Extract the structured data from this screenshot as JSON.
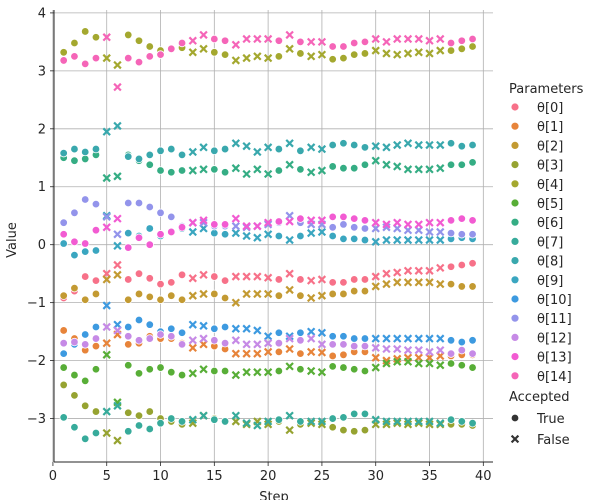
{
  "chart_data": {
    "type": "scatter",
    "title": "",
    "xlabel": "Step",
    "ylabel": "Value",
    "xlim": [
      0.1,
      40.9
    ],
    "ylim": [
      -3.75,
      4.05
    ],
    "xticks": [
      0,
      5,
      10,
      15,
      20,
      25,
      30,
      35,
      40
    ],
    "yticks": [
      -3,
      -2,
      -1,
      0,
      1,
      2,
      3,
      4
    ],
    "grid": true,
    "legend": {
      "placement": "right",
      "hue_title": "Parameters",
      "style_title": "Accepted",
      "styles": [
        {
          "name": "True",
          "marker": "circle"
        },
        {
          "name": "False",
          "marker": "x"
        }
      ]
    },
    "x": [
      1,
      2,
      3,
      4,
      5,
      6,
      7,
      8,
      9,
      10,
      11,
      12,
      13,
      14,
      15,
      16,
      17,
      18,
      19,
      20,
      21,
      22,
      23,
      24,
      25,
      26,
      27,
      28,
      29,
      30,
      31,
      32,
      33,
      34,
      35,
      36,
      37,
      38,
      39
    ],
    "accepted": [
      true,
      true,
      true,
      true,
      false,
      false,
      true,
      true,
      true,
      true,
      true,
      true,
      false,
      false,
      true,
      true,
      false,
      false,
      false,
      false,
      true,
      false,
      true,
      false,
      false,
      true,
      true,
      true,
      true,
      false,
      false,
      false,
      false,
      false,
      false,
      false,
      true,
      true,
      true
    ],
    "series": [
      {
        "name": "θ[0]",
        "color": "#f77189",
        "values": [
          -0.92,
          -0.8,
          -0.55,
          -0.62,
          -0.5,
          -0.35,
          -0.6,
          -0.5,
          -0.58,
          -0.68,
          -0.65,
          -0.52,
          -0.58,
          -0.52,
          -0.55,
          -0.62,
          -0.55,
          -0.55,
          -0.55,
          -0.57,
          -0.6,
          -0.5,
          -0.6,
          -0.62,
          -0.6,
          -0.65,
          -0.65,
          -0.6,
          -0.6,
          -0.55,
          -0.5,
          -0.48,
          -0.45,
          -0.45,
          -0.45,
          -0.4,
          -0.38,
          -0.35,
          -0.32
        ]
      },
      {
        "name": "θ[1]",
        "color": "#e7843a",
        "values": [
          -1.48,
          -1.62,
          -1.82,
          -1.75,
          -1.7,
          -1.55,
          -1.72,
          -1.7,
          -1.58,
          -1.62,
          -1.62,
          -1.7,
          -1.78,
          -1.72,
          -1.75,
          -1.8,
          -1.88,
          -1.88,
          -1.88,
          -1.85,
          -1.85,
          -1.8,
          -1.88,
          -1.85,
          -1.86,
          -1.92,
          -1.9,
          -1.85,
          -1.85,
          -1.95,
          -2.0,
          -1.97,
          -1.95,
          -1.95,
          -1.95,
          -1.92,
          -1.92,
          -1.9,
          -1.9
        ]
      },
      {
        "name": "θ[2]",
        "color": "#c39a32",
        "values": [
          -0.88,
          -0.75,
          -0.95,
          -0.85,
          -0.6,
          -0.52,
          -0.95,
          -0.85,
          -0.9,
          -0.95,
          -0.88,
          -0.95,
          -0.88,
          -0.85,
          -0.85,
          -0.92,
          -1.0,
          -0.85,
          -0.85,
          -0.85,
          -0.88,
          -0.78,
          -0.88,
          -0.92,
          -0.88,
          -0.85,
          -0.85,
          -0.8,
          -0.8,
          -0.72,
          -0.68,
          -0.65,
          -0.65,
          -0.65,
          -0.65,
          -0.68,
          -0.68,
          -0.72,
          -0.72
        ]
      },
      {
        "name": "θ[3]",
        "color": "#96a331",
        "values": [
          -2.42,
          -2.6,
          -2.78,
          -2.88,
          -3.25,
          -3.38,
          -2.9,
          -2.95,
          -2.88,
          -3.0,
          -3.05,
          -3.1,
          -3.08,
          -2.95,
          -3.0,
          -3.05,
          -3.05,
          -3.1,
          -3.05,
          -3.1,
          -3.05,
          -3.2,
          -3.1,
          -3.08,
          -3.1,
          -3.15,
          -3.2,
          -3.22,
          -3.2,
          -3.1,
          -3.1,
          -3.08,
          -3.1,
          -3.08,
          -3.1,
          -3.1,
          -3.1,
          -3.1,
          -3.12
        ]
      },
      {
        "name": "θ[4]",
        "color": "#a4a82f",
        "values": [
          3.32,
          3.48,
          3.68,
          3.58,
          3.22,
          3.1,
          3.62,
          3.52,
          3.42,
          3.35,
          3.38,
          3.4,
          3.32,
          3.38,
          3.32,
          3.28,
          3.18,
          3.22,
          3.25,
          3.22,
          3.25,
          3.38,
          3.3,
          3.25,
          3.28,
          3.2,
          3.22,
          3.28,
          3.3,
          3.35,
          3.3,
          3.28,
          3.3,
          3.32,
          3.3,
          3.35,
          3.35,
          3.38,
          3.42
        ]
      },
      {
        "name": "θ[5]",
        "color": "#58ae37",
        "values": [
          -2.12,
          -2.25,
          -2.35,
          -2.15,
          -1.9,
          -2.72,
          -2.08,
          -2.22,
          -2.15,
          -2.12,
          -2.2,
          -2.25,
          -2.22,
          -2.15,
          -2.18,
          -2.18,
          -2.25,
          -2.2,
          -2.2,
          -2.2,
          -2.18,
          -2.1,
          -2.15,
          -2.18,
          -2.2,
          -2.1,
          -2.12,
          -2.15,
          -2.18,
          -2.12,
          -2.05,
          -2.02,
          -2.02,
          -2.05,
          -2.05,
          -2.08,
          -2.05,
          -2.08,
          -2.12
        ]
      },
      {
        "name": "θ[6]",
        "color": "#35ad84",
        "values": [
          1.5,
          1.45,
          1.48,
          1.55,
          1.15,
          1.18,
          1.55,
          1.45,
          1.38,
          1.28,
          1.25,
          1.28,
          1.28,
          1.3,
          1.3,
          1.25,
          1.32,
          1.22,
          1.3,
          1.22,
          1.28,
          1.38,
          1.3,
          1.25,
          1.28,
          1.35,
          1.32,
          1.32,
          1.38,
          1.45,
          1.38,
          1.35,
          1.3,
          1.3,
          1.3,
          1.32,
          1.38,
          1.38,
          1.42
        ]
      },
      {
        "name": "θ[7]",
        "color": "#37ab9b",
        "values": [
          -2.98,
          -3.15,
          -3.35,
          -3.25,
          -2.88,
          -2.78,
          -3.22,
          -3.12,
          -3.18,
          -3.08,
          -3.0,
          -3.05,
          -3.02,
          -2.95,
          -3.02,
          -3.05,
          -2.95,
          -3.08,
          -3.12,
          -3.05,
          -3.02,
          -2.95,
          -3.05,
          -3.05,
          -3.05,
          -3.0,
          -2.98,
          -2.92,
          -2.92,
          -3.02,
          -3.05,
          -3.05,
          -3.05,
          -3.05,
          -3.05,
          -3.08,
          -3.02,
          -3.05,
          -3.08
        ]
      },
      {
        "name": "θ[8]",
        "color": "#39a8ad",
        "values": [
          1.58,
          1.65,
          1.6,
          1.65,
          1.95,
          2.05,
          1.52,
          1.48,
          1.55,
          1.62,
          1.65,
          1.55,
          1.6,
          1.68,
          1.62,
          1.65,
          1.75,
          1.7,
          1.6,
          1.68,
          1.65,
          1.75,
          1.62,
          1.68,
          1.65,
          1.72,
          1.75,
          1.72,
          1.68,
          1.7,
          1.68,
          1.72,
          1.75,
          1.72,
          1.72,
          1.72,
          1.75,
          1.7,
          1.72
        ]
      },
      {
        "name": "θ[9]",
        "color": "#3aa6c0",
        "values": [
          0.02,
          -0.18,
          -0.12,
          -0.1,
          0.5,
          -0.02,
          0.2,
          0.15,
          0.28,
          0.15,
          0.22,
          0.28,
          0.22,
          0.28,
          0.2,
          0.18,
          0.2,
          0.15,
          0.12,
          0.18,
          0.15,
          0.08,
          0.15,
          0.2,
          0.22,
          0.15,
          0.1,
          0.1,
          0.08,
          0.05,
          0.08,
          0.08,
          0.08,
          0.08,
          0.08,
          0.08,
          0.1,
          0.12,
          0.1
        ]
      },
      {
        "name": "θ[10]",
        "color": "#3d9ae0",
        "values": [
          -1.88,
          -1.72,
          -1.55,
          -1.42,
          -1.05,
          -1.38,
          -1.42,
          -1.3,
          -1.38,
          -1.5,
          -1.45,
          -1.52,
          -1.38,
          -1.4,
          -1.45,
          -1.42,
          -1.45,
          -1.45,
          -1.48,
          -1.58,
          -1.52,
          -1.58,
          -1.52,
          -1.5,
          -1.52,
          -1.58,
          -1.58,
          -1.62,
          -1.62,
          -1.62,
          -1.62,
          -1.62,
          -1.62,
          -1.62,
          -1.62,
          -1.62,
          -1.65,
          -1.68,
          -1.65
        ]
      },
      {
        "name": "θ[11]",
        "color": "#9394eb",
        "values": [
          0.38,
          0.55,
          0.78,
          0.7,
          0.48,
          0.18,
          0.72,
          0.72,
          0.65,
          0.55,
          0.48,
          0.32,
          0.38,
          0.38,
          0.32,
          0.32,
          0.32,
          0.3,
          0.32,
          0.35,
          0.38,
          0.5,
          0.38,
          0.35,
          0.35,
          0.3,
          0.35,
          0.3,
          0.28,
          0.28,
          0.3,
          0.28,
          0.25,
          0.25,
          0.22,
          0.22,
          0.2,
          0.18,
          0.18
        ]
      },
      {
        "name": "θ[12]",
        "color": "#c68ae6",
        "values": [
          -1.7,
          -1.68,
          -1.72,
          -1.62,
          -1.42,
          -1.48,
          -1.58,
          -1.65,
          -1.62,
          -1.55,
          -1.58,
          -1.72,
          -1.65,
          -1.62,
          -1.65,
          -1.7,
          -1.65,
          -1.72,
          -1.72,
          -1.7,
          -1.7,
          -1.62,
          -1.65,
          -1.62,
          -1.72,
          -1.72,
          -1.72,
          -1.75,
          -1.75,
          -1.78,
          -1.8,
          -1.8,
          -1.82,
          -1.82,
          -1.85,
          -1.82,
          -1.88,
          -1.82,
          -1.88
        ]
      },
      {
        "name": "θ[13]",
        "color": "#f25bd2",
        "values": [
          0.18,
          0.05,
          0.02,
          0.25,
          0.3,
          0.45,
          -0.05,
          0.12,
          0.0,
          0.18,
          0.22,
          0.3,
          0.38,
          0.42,
          0.35,
          0.35,
          0.45,
          0.32,
          0.32,
          0.38,
          0.4,
          0.4,
          0.45,
          0.42,
          0.42,
          0.48,
          0.48,
          0.45,
          0.42,
          0.38,
          0.35,
          0.38,
          0.35,
          0.35,
          0.38,
          0.38,
          0.42,
          0.45,
          0.42
        ]
      },
      {
        "name": "θ[14]",
        "color": "#f565b8",
        "values": [
          3.18,
          3.25,
          3.12,
          3.22,
          3.58,
          2.72,
          3.22,
          3.15,
          3.25,
          3.28,
          3.38,
          3.48,
          3.52,
          3.62,
          3.55,
          3.52,
          3.45,
          3.55,
          3.55,
          3.55,
          3.52,
          3.62,
          3.5,
          3.5,
          3.5,
          3.42,
          3.42,
          3.48,
          3.5,
          3.55,
          3.5,
          3.55,
          3.55,
          3.55,
          3.52,
          3.55,
          3.48,
          3.52,
          3.55
        ]
      }
    ]
  }
}
